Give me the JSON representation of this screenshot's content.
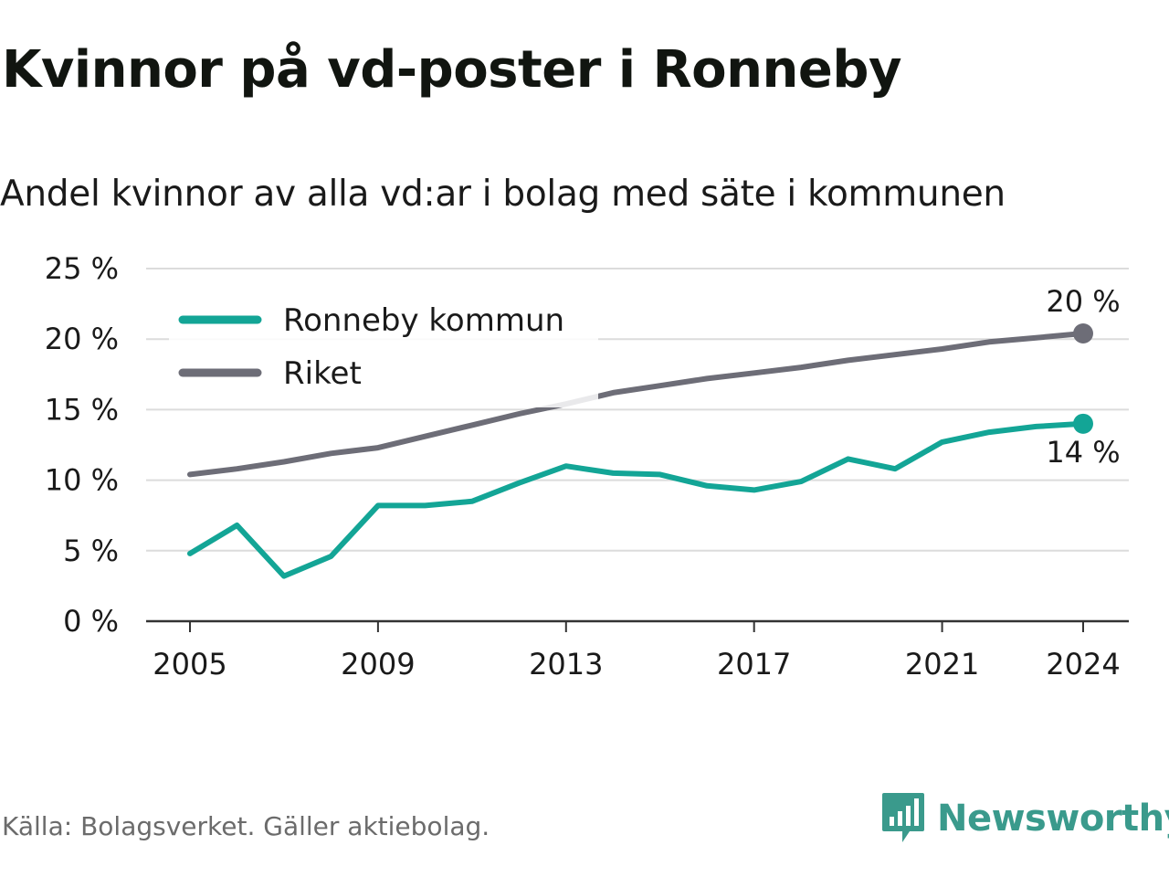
{
  "title": "Kvinnor på vd-poster i Ronneby",
  "subtitle": "Andel kvinnor av alla vd:ar i bolag med säte i kommunen",
  "source": "Källa: Bolagsverket. Gäller aktiebolag.",
  "brand": {
    "name": "Newsworthy",
    "color": "#3a9a8c"
  },
  "chart_data": {
    "type": "line",
    "title": "Kvinnor på vd-poster i Ronneby",
    "subtitle": "Andel kvinnor av alla vd:ar i bolag med säte i kommunen",
    "xlabel": "",
    "ylabel": "",
    "x": [
      2005,
      2006,
      2007,
      2008,
      2009,
      2010,
      2011,
      2012,
      2013,
      2014,
      2015,
      2016,
      2017,
      2018,
      2019,
      2020,
      2021,
      2022,
      2023,
      2024
    ],
    "x_ticks": [
      "2005",
      "2009",
      "2013",
      "2017",
      "2021",
      "2024"
    ],
    "ylim": [
      0,
      25
    ],
    "y_ticks": [
      {
        "value": 0,
        "label": "0 %"
      },
      {
        "value": 5,
        "label": "5 %"
      },
      {
        "value": 10,
        "label": "10 %"
      },
      {
        "value": 15,
        "label": "15 %"
      },
      {
        "value": 20,
        "label": "20 %"
      },
      {
        "value": 25,
        "label": "25 %"
      }
    ],
    "grid": true,
    "legend_position": "top-left",
    "series": [
      {
        "name": "Ronneby kommun",
        "color": "#13a596",
        "values": [
          4.8,
          6.8,
          3.2,
          4.6,
          8.2,
          8.2,
          8.5,
          9.8,
          11.0,
          10.5,
          10.4,
          9.6,
          9.3,
          9.9,
          11.5,
          10.8,
          12.7,
          13.4,
          13.8,
          14.0
        ],
        "end_label": "14 %"
      },
      {
        "name": "Riket",
        "color": "#6d6d77",
        "values": [
          10.4,
          10.8,
          11.3,
          11.9,
          12.3,
          13.1,
          13.9,
          14.7,
          15.4,
          16.2,
          16.7,
          17.2,
          17.6,
          18.0,
          18.5,
          18.9,
          19.3,
          19.8,
          20.1,
          20.4
        ],
        "end_label": "20 %"
      }
    ]
  }
}
